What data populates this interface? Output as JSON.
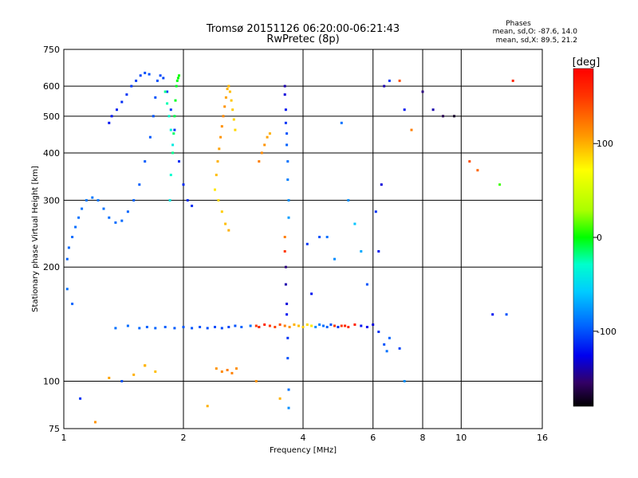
{
  "chart_data": {
    "type": "scatter",
    "title": "Tromsø 20151126 06:20:00-06:21:43",
    "subtitle": "RwPretec (8p)",
    "stats": {
      "heading": "Phases",
      "line_o": "mean, sd,O: -87.6, 14.0",
      "line_x": "mean, sd,X: 89.5, 21.2"
    },
    "xlabel": "Frequency [MHz]",
    "ylabel": "Stationary phase Virtual Height [km]",
    "x_scale": "log",
    "y_scale": "log",
    "xlim": [
      1,
      16
    ],
    "ylim": [
      75,
      750
    ],
    "x_ticks": [
      1,
      2,
      4,
      6,
      8,
      10,
      16
    ],
    "y_ticks": [
      75,
      100,
      200,
      300,
      400,
      500,
      600,
      750
    ],
    "grid": true,
    "colorbar": {
      "label": "[deg]",
      "range": [
        -180,
        180
      ],
      "ticks": [
        100,
        0,
        -100
      ]
    },
    "series": [
      {
        "mode": "sector",
        "points": [
          [
            1.02,
            210,
            -95
          ],
          [
            1.03,
            225,
            -93
          ],
          [
            1.05,
            240,
            -92
          ],
          [
            1.07,
            255,
            -91
          ],
          [
            1.09,
            270,
            -90
          ],
          [
            1.11,
            285,
            -89
          ],
          [
            1.14,
            300,
            -88
          ],
          [
            1.18,
            305,
            -88
          ],
          [
            1.22,
            300,
            -89
          ],
          [
            1.26,
            285,
            -90
          ],
          [
            1.3,
            270,
            -91
          ],
          [
            1.35,
            262,
            -92
          ],
          [
            1.4,
            265,
            -93
          ],
          [
            1.45,
            280,
            -94
          ],
          [
            1.5,
            300,
            -95
          ],
          [
            1.55,
            330,
            -96
          ],
          [
            1.6,
            380,
            -97
          ],
          [
            1.65,
            440,
            -98
          ],
          [
            1.68,
            500,
            -99
          ],
          [
            1.7,
            560,
            -100
          ],
          [
            1.72,
            620,
            -101
          ],
          [
            1.75,
            640,
            -103
          ],
          [
            1.78,
            630,
            -104
          ],
          [
            1.82,
            580,
            -106
          ],
          [
            1.86,
            520,
            -108
          ],
          [
            1.9,
            460,
            -110
          ],
          [
            1.95,
            380,
            -112
          ],
          [
            2.0,
            330,
            -113
          ],
          [
            2.05,
            300,
            -113
          ],
          [
            2.1,
            290,
            -112
          ],
          [
            1.3,
            480,
            -120
          ],
          [
            1.32,
            500,
            -118
          ],
          [
            1.36,
            520,
            -115
          ],
          [
            1.4,
            545,
            -112
          ],
          [
            1.44,
            570,
            -110
          ],
          [
            1.48,
            600,
            -108
          ],
          [
            1.52,
            620,
            -106
          ],
          [
            1.56,
            640,
            -104
          ],
          [
            1.6,
            650,
            -102
          ],
          [
            1.64,
            645,
            -100
          ]
        ]
      },
      {
        "mode": "sector",
        "points": [
          [
            1.85,
            300,
            -40
          ],
          [
            1.86,
            350,
            -30
          ],
          [
            1.88,
            400,
            -20
          ],
          [
            1.89,
            450,
            -15
          ],
          [
            1.9,
            500,
            -10
          ],
          [
            1.91,
            550,
            -5
          ],
          [
            1.92,
            600,
            -5
          ],
          [
            1.93,
            620,
            -2
          ],
          [
            1.94,
            630,
            0
          ],
          [
            1.95,
            640,
            2
          ],
          [
            1.8,
            580,
            -20
          ],
          [
            1.82,
            540,
            -25
          ],
          [
            1.84,
            500,
            -30
          ],
          [
            1.86,
            460,
            -35
          ],
          [
            1.88,
            420,
            -40
          ]
        ]
      },
      {
        "mode": "sector",
        "points": [
          [
            1.02,
            175,
            -90
          ],
          [
            1.05,
            160,
            -95
          ],
          [
            1.35,
            138,
            -90
          ],
          [
            1.45,
            140,
            -92
          ],
          [
            1.55,
            138,
            -93
          ],
          [
            1.62,
            139,
            -95
          ],
          [
            1.7,
            138,
            -94
          ],
          [
            1.8,
            139,
            -96
          ],
          [
            1.9,
            138,
            -97
          ],
          [
            2.0,
            139,
            -98
          ],
          [
            2.1,
            138,
            -99
          ],
          [
            2.2,
            139,
            -100
          ],
          [
            2.3,
            138,
            -101
          ],
          [
            2.4,
            139,
            -102
          ],
          [
            2.5,
            138,
            -103
          ],
          [
            2.6,
            139,
            -104
          ],
          [
            2.7,
            140,
            -100
          ],
          [
            2.8,
            139,
            -95
          ],
          [
            2.95,
            140,
            -90
          ],
          [
            3.1,
            139,
            -85
          ],
          [
            2.42,
            108,
            110
          ],
          [
            2.5,
            106,
            115
          ],
          [
            2.58,
            107,
            120
          ],
          [
            2.65,
            105,
            118
          ],
          [
            2.72,
            108,
            112
          ],
          [
            1.3,
            102,
            105
          ],
          [
            1.4,
            100,
            110
          ],
          [
            1.5,
            104,
            100
          ],
          [
            1.6,
            110,
            90
          ],
          [
            1.7,
            106,
            95
          ]
        ]
      },
      {
        "mode": "sector",
        "points": [
          [
            2.42,
            350,
            95
          ],
          [
            2.44,
            380,
            100
          ],
          [
            2.46,
            410,
            105
          ],
          [
            2.48,
            440,
            110
          ],
          [
            2.5,
            470,
            112
          ],
          [
            2.52,
            500,
            115
          ],
          [
            2.54,
            530,
            110
          ],
          [
            2.56,
            560,
            105
          ],
          [
            2.58,
            590,
            100
          ],
          [
            2.6,
            600,
            98
          ],
          [
            2.62,
            580,
            95
          ],
          [
            2.64,
            550,
            92
          ],
          [
            2.66,
            520,
            90
          ],
          [
            2.68,
            490,
            88
          ],
          [
            2.7,
            460,
            86
          ],
          [
            2.4,
            320,
            80
          ],
          [
            2.45,
            300,
            85
          ],
          [
            2.5,
            280,
            90
          ],
          [
            2.55,
            260,
            95
          ],
          [
            2.6,
            250,
            100
          ],
          [
            3.1,
            380,
            120
          ],
          [
            3.15,
            400,
            115
          ],
          [
            3.2,
            420,
            110
          ],
          [
            3.25,
            440,
            105
          ],
          [
            3.3,
            450,
            100
          ]
        ]
      },
      {
        "mode": "sector",
        "points": [
          [
            3.05,
            140,
            150
          ],
          [
            3.1,
            139,
            155
          ],
          [
            3.2,
            141,
            160
          ],
          [
            3.3,
            140,
            150
          ],
          [
            3.4,
            139,
            145
          ],
          [
            3.5,
            141,
            140
          ],
          [
            3.6,
            140,
            120
          ],
          [
            3.7,
            139,
            110
          ],
          [
            3.8,
            141,
            100
          ],
          [
            3.9,
            140,
            95
          ],
          [
            4.0,
            139,
            90
          ],
          [
            4.1,
            141,
            85
          ],
          [
            4.2,
            140,
            80
          ],
          [
            4.3,
            139,
            -80
          ],
          [
            4.4,
            141,
            -85
          ],
          [
            4.5,
            140,
            -90
          ],
          [
            4.6,
            139,
            -95
          ],
          [
            4.7,
            141,
            -100
          ],
          [
            4.8,
            140,
            -105
          ],
          [
            4.9,
            139,
            -110
          ],
          [
            5.0,
            140,
            150
          ],
          [
            5.2,
            139,
            155
          ],
          [
            5.4,
            141,
            160
          ],
          [
            5.6,
            140,
            -120
          ],
          [
            5.8,
            139,
            -125
          ],
          [
            6.0,
            141,
            -130
          ],
          [
            6.2,
            135,
            -110
          ],
          [
            6.4,
            125,
            -100
          ],
          [
            6.6,
            130,
            -95
          ],
          [
            7.0,
            122,
            -105
          ]
        ]
      },
      {
        "mode": "sector",
        "points": [
          [
            3.6,
            600,
            -140
          ],
          [
            3.6,
            570,
            -130
          ],
          [
            3.62,
            520,
            -120
          ],
          [
            3.62,
            480,
            -110
          ],
          [
            3.64,
            450,
            -100
          ],
          [
            3.64,
            420,
            -95
          ],
          [
            3.66,
            380,
            -90
          ],
          [
            3.66,
            340,
            -85
          ],
          [
            3.68,
            300,
            -80
          ],
          [
            3.68,
            270,
            -75
          ],
          [
            3.6,
            240,
            120
          ],
          [
            3.6,
            220,
            150
          ],
          [
            3.62,
            200,
            -150
          ],
          [
            3.62,
            180,
            -140
          ],
          [
            3.64,
            160,
            -130
          ],
          [
            3.64,
            150,
            -120
          ],
          [
            3.66,
            130,
            -110
          ],
          [
            3.66,
            115,
            -100
          ],
          [
            3.68,
            95,
            -90
          ],
          [
            3.68,
            85,
            -80
          ]
        ]
      },
      {
        "mode": "sector",
        "points": [
          [
            3.05,
            100,
            110
          ],
          [
            3.5,
            90,
            100
          ],
          [
            4.1,
            230,
            -110
          ],
          [
            4.2,
            170,
            -120
          ],
          [
            4.4,
            240,
            -100
          ],
          [
            4.6,
            240,
            -90
          ],
          [
            4.8,
            210,
            -80
          ],
          [
            5.0,
            480,
            -90
          ],
          [
            5.2,
            300,
            -80
          ],
          [
            5.4,
            260,
            -60
          ],
          [
            5.6,
            220,
            -70
          ],
          [
            5.8,
            180,
            -100
          ],
          [
            6.1,
            280,
            -110
          ],
          [
            6.2,
            220,
            -120
          ],
          [
            6.3,
            330,
            -130
          ],
          [
            6.4,
            600,
            -140
          ],
          [
            6.6,
            620,
            -110
          ],
          [
            7.0,
            620,
            140
          ],
          [
            7.2,
            520,
            -120
          ],
          [
            7.5,
            460,
            120
          ],
          [
            8.0,
            580,
            -150
          ],
          [
            8.5,
            520,
            -140
          ],
          [
            9.0,
            500,
            -160
          ],
          [
            9.6,
            500,
            -170
          ],
          [
            10.5,
            380,
            140
          ],
          [
            11.0,
            360,
            130
          ],
          [
            12.0,
            150,
            -120
          ],
          [
            12.5,
            330,
            10
          ],
          [
            13.0,
            150,
            -100
          ],
          [
            13.5,
            620,
            160
          ],
          [
            1.1,
            90,
            -110
          ],
          [
            1.2,
            78,
            110
          ],
          [
            1.4,
            100,
            -100
          ],
          [
            1.6,
            110,
            100
          ],
          [
            2.3,
            86,
            100
          ],
          [
            5.8,
            74,
            -120
          ],
          [
            6.5,
            120,
            -90
          ],
          [
            7.2,
            100,
            -80
          ],
          [
            4.8,
            140,
            150
          ],
          [
            5.1,
            140,
            160
          ]
        ]
      }
    ]
  }
}
